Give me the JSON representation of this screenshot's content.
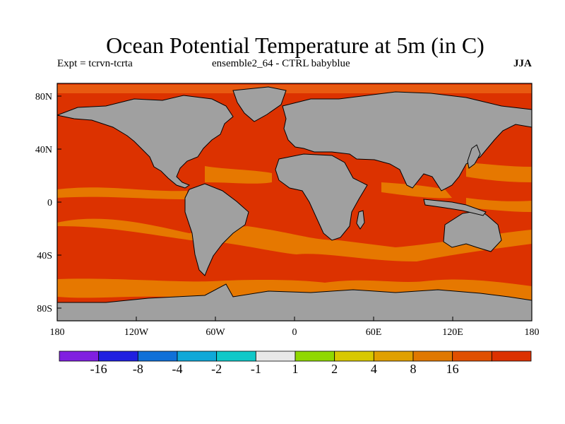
{
  "title": "Ocean Potential Temperature at 5m (in C)",
  "subtitle_left": "Expt = tcrvn-tcrta",
  "subtitle_center": "ensemble2_64 - CTRL babyblue",
  "subtitle_right": "JJA",
  "colors": {
    "land": "#a0a0a0",
    "ocean_main": "#dc3200",
    "warm_band": "#e67800",
    "mid_band": "#e85a10",
    "coast": "#000000"
  },
  "map": {
    "y_ticks": [
      "80N",
      "40N",
      "0",
      "40S",
      "80S"
    ],
    "x_ticks": [
      "180",
      "120W",
      "60W",
      "0",
      "60E",
      "120E",
      "180"
    ]
  },
  "colorbar": {
    "colors": [
      "#8020e0",
      "#2020e0",
      "#1070d8",
      "#10a8d8",
      "#10c8c8",
      "#e8e8e8",
      "#90d800",
      "#d8c800",
      "#e0a000",
      "#e07800",
      "#e05000",
      "#dc3200"
    ],
    "labels": [
      "-16",
      "-8",
      "-4",
      "-2",
      "-1",
      "1",
      "2",
      "4",
      "8",
      "16"
    ]
  }
}
